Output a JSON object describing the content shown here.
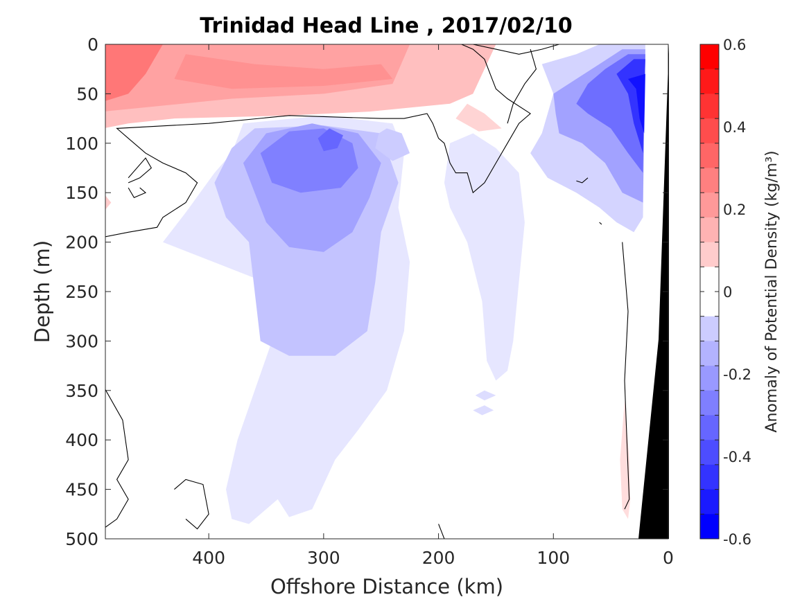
{
  "chart_data": {
    "type": "heatmap",
    "title": "Trinidad Head Line , 2017/02/10",
    "xlabel": "Offshore Distance (km)",
    "ylabel": "Depth (m)",
    "xlim": [
      490,
      0
    ],
    "ylim": [
      0,
      500
    ],
    "x_reversed": true,
    "y_reversed": true,
    "x_ticks": [
      "400",
      "300",
      "200",
      "100",
      "0"
    ],
    "x_tick_values": [
      400,
      300,
      200,
      100,
      0
    ],
    "y_ticks": [
      "0",
      "50",
      "100",
      "150",
      "200",
      "250",
      "300",
      "350",
      "400",
      "450",
      "500"
    ],
    "y_tick_values": [
      0,
      50,
      100,
      150,
      200,
      250,
      300,
      350,
      400,
      450,
      500
    ],
    "colorbar": {
      "label": "Anomaly of Potential Density (kg/m³)",
      "range": [
        -0.6,
        0.6
      ],
      "ticks": [
        "0.6",
        "0.4",
        "0.2",
        "0",
        "-0.2",
        "-0.4",
        "-0.6"
      ],
      "tick_values": [
        0.6,
        0.4,
        0.2,
        0,
        -0.2,
        -0.4,
        -0.6
      ],
      "levels": 20,
      "colormap": "blue-white-red",
      "low_color": "#0000ff",
      "high_color": "#ff0000",
      "mid_color": "#ffffff"
    },
    "zero_contour": true,
    "bathymetry_color": "#000000",
    "features": [
      {
        "name": "surface positive anomaly",
        "x_range": [
          490,
          190
        ],
        "depth_range": [
          0,
          80
        ],
        "value": 0.25
      },
      {
        "name": "offshore subsurface negative core",
        "x_range": [
          380,
          240
        ],
        "depth_range": [
          80,
          320
        ],
        "value": -0.25
      },
      {
        "name": "nearshore negative core",
        "x_range": [
          110,
          20
        ],
        "depth_range": [
          0,
          200
        ],
        "value": -0.5
      },
      {
        "name": "mid-shelf negative tongue",
        "x_range": [
          190,
          120
        ],
        "depth_range": [
          100,
          370
        ],
        "value": -0.1
      }
    ]
  }
}
